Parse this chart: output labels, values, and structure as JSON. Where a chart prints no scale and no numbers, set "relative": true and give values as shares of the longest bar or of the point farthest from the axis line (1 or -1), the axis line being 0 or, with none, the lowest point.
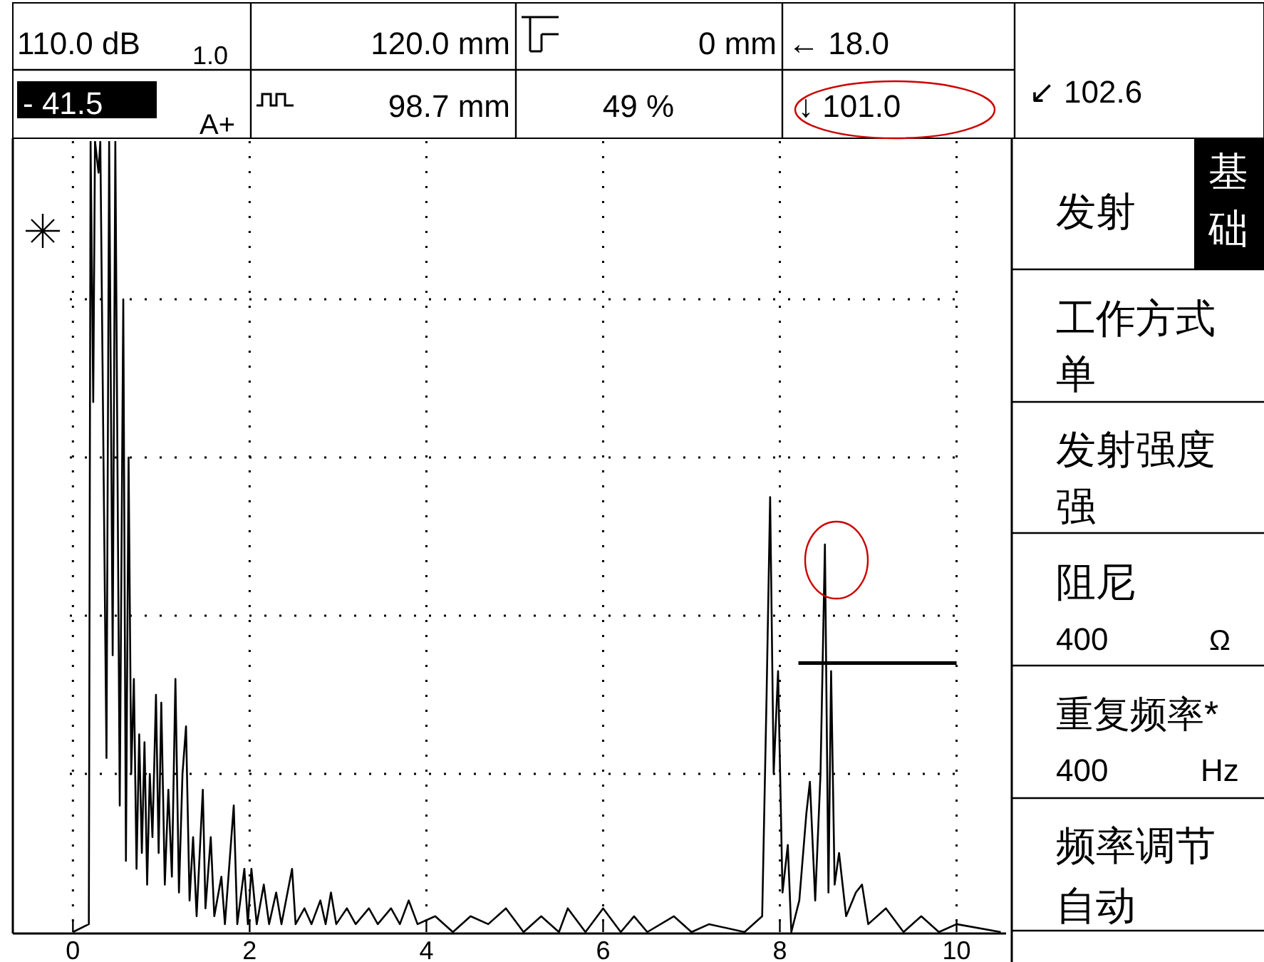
{
  "chart_data": {
    "type": "line",
    "relative": true,
    "grid": true,
    "xlim": [
      -0.68,
      10.56
    ],
    "xticks": [
      0,
      2,
      4,
      6,
      8,
      10
    ],
    "x": [
      0,
      0.18,
      0.2,
      0.23,
      0.25,
      0.29,
      0.31,
      0.38,
      0.41,
      0.45,
      0.48,
      0.53,
      0.57,
      0.6,
      0.63,
      0.66,
      0.69,
      0.72,
      0.75,
      0.78,
      0.81,
      0.84,
      0.87,
      0.9,
      0.94,
      0.97,
      1.0,
      1.04,
      1.08,
      1.12,
      1.16,
      1.2,
      1.24,
      1.28,
      1.32,
      1.36,
      1.4,
      1.47,
      1.5,
      1.56,
      1.6,
      1.68,
      1.72,
      1.82,
      1.86,
      1.94,
      1.98,
      2.02,
      2.08,
      2.16,
      2.22,
      2.3,
      2.36,
      2.48,
      2.52,
      2.62,
      2.7,
      2.8,
      2.86,
      2.92,
      2.98,
      3.1,
      3.2,
      3.35,
      3.45,
      3.6,
      3.7,
      3.8,
      3.9,
      4.1,
      4.3,
      4.5,
      4.7,
      4.9,
      5.1,
      5.3,
      5.5,
      5.6,
      5.8,
      6.0,
      6.2,
      6.35,
      6.5,
      6.8,
      7.0,
      7.2,
      7.6,
      7.8,
      7.85,
      7.89,
      7.93,
      7.98,
      8.03,
      8.09,
      8.13,
      8.22,
      8.3,
      8.34,
      8.4,
      8.46,
      8.51,
      8.55,
      8.58,
      8.62,
      8.67,
      8.75,
      8.86,
      8.93,
      9.0,
      9.2,
      9.4,
      9.6,
      9.8,
      10.0,
      10.5
    ],
    "series": [
      {
        "color": "#000000",
        "values": [
          0,
          0.01,
          1,
          0.67,
          1,
          0.96,
          1,
          0.22,
          1,
          0.35,
          1,
          0.16,
          0.8,
          0.09,
          0.6,
          0.2,
          0.32,
          0.08,
          0.25,
          0.1,
          0.24,
          0.06,
          0.2,
          0.12,
          0.3,
          0.1,
          0.29,
          0.06,
          0.18,
          0.07,
          0.32,
          0.05,
          0.2,
          0.26,
          0.04,
          0.12,
          0.02,
          0.18,
          0.03,
          0.12,
          0.02,
          0.07,
          0.01,
          0.16,
          0.01,
          0.08,
          0.01,
          0.08,
          0.01,
          0.06,
          0.01,
          0.05,
          0.01,
          0.08,
          0.01,
          0.03,
          0.01,
          0.04,
          0.01,
          0.05,
          0.01,
          0.03,
          0.01,
          0.03,
          0.01,
          0.03,
          0.01,
          0.04,
          0.01,
          0.02,
          0,
          0.02,
          0.01,
          0.03,
          0,
          0.02,
          0,
          0.03,
          0,
          0.03,
          0,
          0.02,
          0,
          0.02,
          0,
          0.01,
          0,
          0.02,
          0.3,
          0.55,
          0.2,
          0.33,
          0.05,
          0.11,
          0,
          0.04,
          0.15,
          0.19,
          0.04,
          0.2,
          0.49,
          0.05,
          0.33,
          0.06,
          0.1,
          0.02,
          0.05,
          0.06,
          0.01,
          0.03,
          0,
          0.02,
          0,
          0.01,
          0
        ]
      },
      {
        "type": "line",
        "color": "#000000",
        "x": [
          8.21,
          10.0
        ],
        "values": [
          0.34,
          0.34
        ]
      }
    ],
    "annotations": [
      "110.0 dB",
      "1.0",
      "120.0 mm",
      "0 mm",
      "← 18.0",
      "↙ 102.6",
      "- 41.5",
      "A+",
      "98.7 mm",
      "49 %",
      "↓ 101.0",
      "发射",
      "基础",
      "工作方式",
      "单",
      "发射强度",
      "强",
      "阻尼",
      "400",
      "Ω",
      "重复频率*",
      "400",
      "Hz",
      "频率调节",
      "自动"
    ]
  }
}
